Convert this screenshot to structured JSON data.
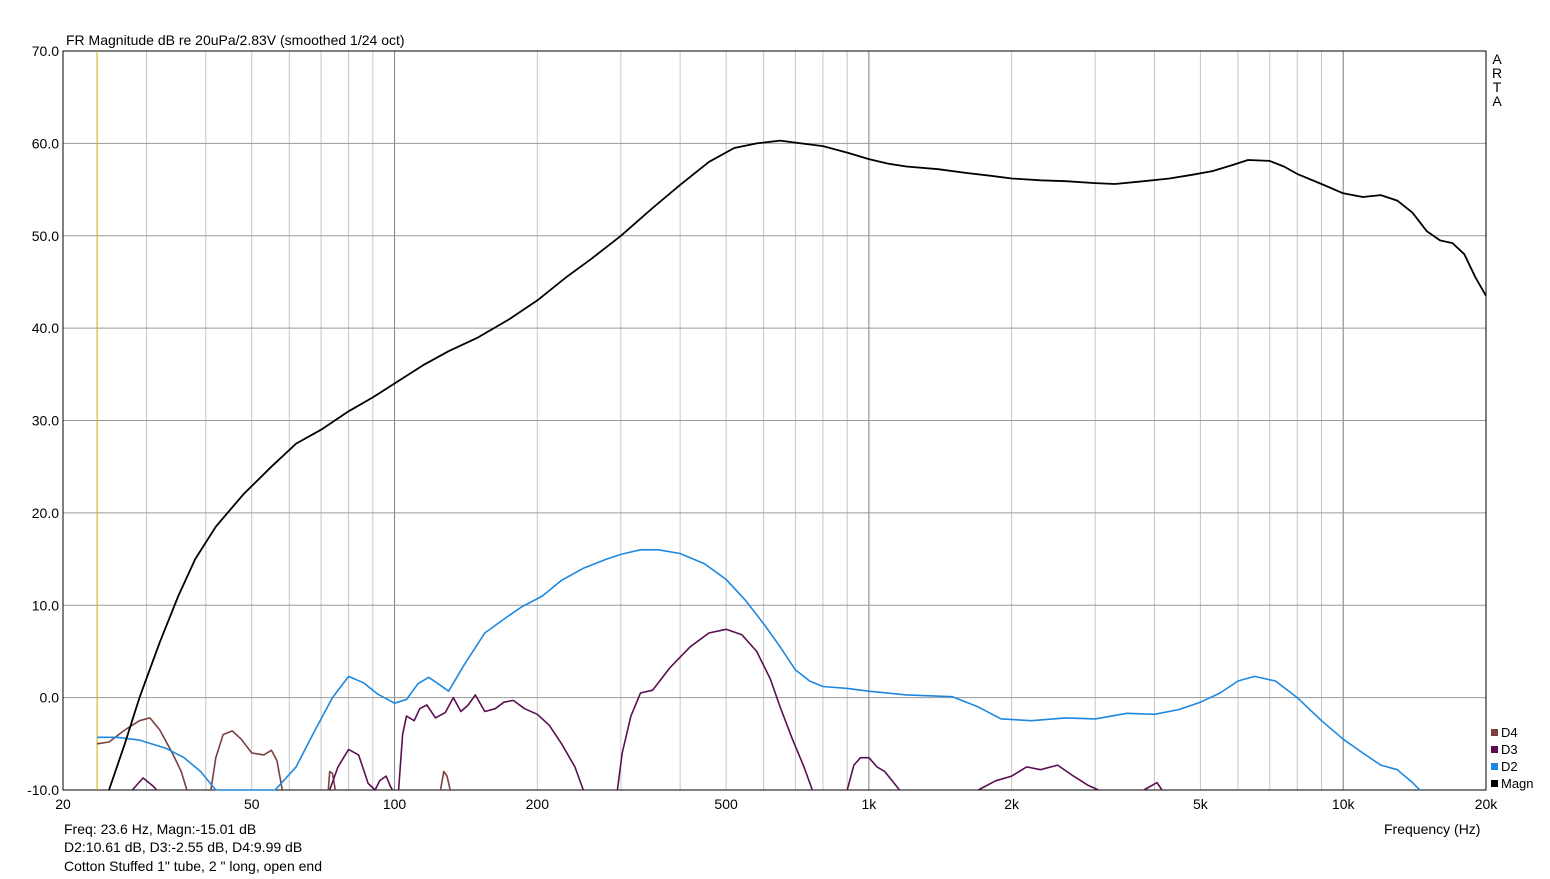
{
  "chart_data": {
    "type": "line",
    "title": "FR Magnitude dB re 20uPa/2.83V (smoothed 1/24 oct)",
    "xlabel": "Frequency (Hz)",
    "ylabel": "",
    "xscale": "log",
    "xlim": [
      20,
      20000
    ],
    "ylim": [
      -10,
      70
    ],
    "grid": true,
    "x_ticks": [
      {
        "value": 20,
        "label": "20"
      },
      {
        "value": 50,
        "label": "50"
      },
      {
        "value": 100,
        "label": "100"
      },
      {
        "value": 200,
        "label": "200"
      },
      {
        "value": 500,
        "label": "500"
      },
      {
        "value": 1000,
        "label": "1k"
      },
      {
        "value": 2000,
        "label": "2k"
      },
      {
        "value": 5000,
        "label": "5k"
      },
      {
        "value": 10000,
        "label": "10k"
      },
      {
        "value": 20000,
        "label": "20k"
      }
    ],
    "y_ticks": [
      "-10.0",
      "0.0",
      "10.0",
      "20.0",
      "30.0",
      "40.0",
      "50.0",
      "60.0",
      "70.0"
    ],
    "cursor_freq": 23.6,
    "cursor_color": "#c8b400",
    "watermark": [
      "A",
      "R",
      "T",
      "A"
    ],
    "legend_position": "right-bottom",
    "legend": [
      {
        "name": "D4",
        "color": "#7b3f3f"
      },
      {
        "name": "D3",
        "color": "#5a1050"
      },
      {
        "name": "D2",
        "color": "#1e88e0"
      },
      {
        "name": "Magn",
        "color": "#000000"
      }
    ],
    "series": [
      {
        "name": "Magn",
        "color": "#000000",
        "points": [
          [
            25,
            -10
          ],
          [
            27,
            -5
          ],
          [
            29,
            0
          ],
          [
            32,
            6
          ],
          [
            35,
            11
          ],
          [
            38,
            15
          ],
          [
            42,
            18.5
          ],
          [
            48,
            22
          ],
          [
            55,
            25
          ],
          [
            62,
            27.5
          ],
          [
            70,
            29
          ],
          [
            80,
            31
          ],
          [
            90,
            32.5
          ],
          [
            100,
            34
          ],
          [
            115,
            36
          ],
          [
            130,
            37.5
          ],
          [
            150,
            39
          ],
          [
            175,
            41
          ],
          [
            200,
            43
          ],
          [
            230,
            45.5
          ],
          [
            260,
            47.5
          ],
          [
            300,
            50
          ],
          [
            350,
            53
          ],
          [
            400,
            55.5
          ],
          [
            460,
            58
          ],
          [
            520,
            59.5
          ],
          [
            580,
            60
          ],
          [
            650,
            60.3
          ],
          [
            720,
            60
          ],
          [
            800,
            59.7
          ],
          [
            900,
            59
          ],
          [
            1000,
            58.3
          ],
          [
            1100,
            57.8
          ],
          [
            1200,
            57.5
          ],
          [
            1400,
            57.2
          ],
          [
            1600,
            56.8
          ],
          [
            1800,
            56.5
          ],
          [
            2000,
            56.2
          ],
          [
            2300,
            56
          ],
          [
            2600,
            55.9
          ],
          [
            3000,
            55.7
          ],
          [
            3300,
            55.6
          ],
          [
            3800,
            55.9
          ],
          [
            4300,
            56.2
          ],
          [
            4800,
            56.6
          ],
          [
            5300,
            57
          ],
          [
            5800,
            57.6
          ],
          [
            6300,
            58.2
          ],
          [
            7000,
            58.1
          ],
          [
            7500,
            57.5
          ],
          [
            8000,
            56.7
          ],
          [
            9000,
            55.6
          ],
          [
            10000,
            54.6
          ],
          [
            11000,
            54.2
          ],
          [
            12000,
            54.4
          ],
          [
            13000,
            53.8
          ],
          [
            14000,
            52.5
          ],
          [
            15000,
            50.5
          ],
          [
            16000,
            49.5
          ],
          [
            17000,
            49.2
          ],
          [
            18000,
            48
          ],
          [
            19000,
            45.5
          ],
          [
            20000,
            43.5
          ]
        ]
      },
      {
        "name": "D2",
        "color": "#1e88e0",
        "points": [
          [
            23.6,
            -4.3
          ],
          [
            26,
            -4.3
          ],
          [
            29,
            -4.6
          ],
          [
            33,
            -5.5
          ],
          [
            36,
            -6.5
          ],
          [
            39,
            -8
          ],
          [
            42,
            -10
          ],
          [
            56,
            -10
          ],
          [
            62,
            -7.5
          ],
          [
            68,
            -3.5
          ],
          [
            74,
            0
          ],
          [
            80,
            2.3
          ],
          [
            86,
            1.6
          ],
          [
            92,
            0.4
          ],
          [
            100,
            -0.6
          ],
          [
            106,
            -0.2
          ],
          [
            112,
            1.5
          ],
          [
            118,
            2.2
          ],
          [
            122,
            1.7
          ],
          [
            130,
            0.7
          ],
          [
            140,
            3.5
          ],
          [
            155,
            7
          ],
          [
            170,
            8.5
          ],
          [
            185,
            9.8
          ],
          [
            205,
            11
          ],
          [
            225,
            12.7
          ],
          [
            250,
            14
          ],
          [
            280,
            15
          ],
          [
            300,
            15.5
          ],
          [
            330,
            16
          ],
          [
            360,
            16
          ],
          [
            400,
            15.6
          ],
          [
            450,
            14.5
          ],
          [
            500,
            12.8
          ],
          [
            550,
            10.5
          ],
          [
            600,
            8
          ],
          [
            650,
            5.5
          ],
          [
            700,
            3
          ],
          [
            750,
            1.8
          ],
          [
            800,
            1.2
          ],
          [
            900,
            1
          ],
          [
            1000,
            0.7
          ],
          [
            1200,
            0.3
          ],
          [
            1500,
            0.1
          ],
          [
            1700,
            -1
          ],
          [
            1900,
            -2.3
          ],
          [
            2200,
            -2.5
          ],
          [
            2600,
            -2.2
          ],
          [
            3000,
            -2.3
          ],
          [
            3500,
            -1.7
          ],
          [
            4000,
            -1.8
          ],
          [
            4500,
            -1.3
          ],
          [
            5000,
            -0.5
          ],
          [
            5500,
            0.5
          ],
          [
            6000,
            1.8
          ],
          [
            6500,
            2.3
          ],
          [
            7200,
            1.8
          ],
          [
            8000,
            0
          ],
          [
            9000,
            -2.5
          ],
          [
            10000,
            -4.5
          ],
          [
            11000,
            -6
          ],
          [
            12000,
            -7.3
          ],
          [
            13000,
            -7.8
          ],
          [
            14000,
            -9.2
          ],
          [
            14500,
            -10
          ]
        ]
      },
      {
        "name": "D3",
        "color": "#5a1050",
        "segments": [
          [
            [
              28,
              -10
            ],
            [
              29.5,
              -8.7
            ],
            [
              31,
              -9.6
            ],
            [
              31.5,
              -10
            ]
          ],
          [
            [
              73,
              -10
            ],
            [
              76,
              -7.5
            ],
            [
              80,
              -5.6
            ],
            [
              84,
              -6.2
            ],
            [
              88,
              -9.3
            ],
            [
              91,
              -10
            ],
            [
              93,
              -9
            ],
            [
              96,
              -8.5
            ],
            [
              98,
              -9.6
            ],
            [
              99,
              -10
            ]
          ],
          [
            [
              102,
              -10
            ],
            [
              104,
              -4
            ],
            [
              106,
              -2
            ],
            [
              110,
              -2.5
            ],
            [
              113,
              -1.2
            ],
            [
              117,
              -0.8
            ],
            [
              122,
              -2.2
            ],
            [
              128,
              -1.6
            ],
            [
              133,
              0
            ],
            [
              138,
              -1.5
            ],
            [
              143,
              -0.8
            ],
            [
              148,
              0.3
            ],
            [
              155,
              -1.5
            ],
            [
              163,
              -1.2
            ],
            [
              170,
              -0.5
            ],
            [
              178,
              -0.3
            ],
            [
              188,
              -1.2
            ],
            [
              200,
              -1.8
            ],
            [
              212,
              -3
            ],
            [
              225,
              -5
            ],
            [
              240,
              -7.5
            ],
            [
              250,
              -10
            ]
          ],
          [
            [
              295,
              -10
            ],
            [
              302,
              -6
            ],
            [
              315,
              -2
            ],
            [
              330,
              0.5
            ],
            [
              350,
              0.8
            ],
            [
              380,
              3.2
            ],
            [
              420,
              5.5
            ],
            [
              460,
              7
            ],
            [
              500,
              7.4
            ],
            [
              540,
              6.8
            ],
            [
              580,
              5
            ],
            [
              620,
              2
            ],
            [
              650,
              -1
            ],
            [
              690,
              -4.5
            ],
            [
              730,
              -7.5
            ],
            [
              760,
              -10
            ]
          ],
          [
            [
              900,
              -10
            ],
            [
              930,
              -7.3
            ],
            [
              960,
              -6.5
            ],
            [
              1000,
              -6.5
            ],
            [
              1040,
              -7.5
            ],
            [
              1080,
              -8
            ],
            [
              1120,
              -9
            ],
            [
              1160,
              -10
            ]
          ],
          [
            [
              1700,
              -10
            ],
            [
              1850,
              -9
            ],
            [
              2000,
              -8.5
            ],
            [
              2150,
              -7.5
            ],
            [
              2300,
              -7.8
            ],
            [
              2500,
              -7.3
            ],
            [
              2700,
              -8.5
            ],
            [
              2900,
              -9.5
            ],
            [
              3050,
              -10
            ]
          ],
          [
            [
              3800,
              -10
            ],
            [
              4050,
              -9.2
            ],
            [
              4150,
              -10
            ]
          ]
        ]
      },
      {
        "name": "D4",
        "color": "#7b3f3f",
        "segments": [
          [
            [
              23.6,
              -5
            ],
            [
              25,
              -4.8
            ],
            [
              27,
              -3.5
            ],
            [
              29,
              -2.5
            ],
            [
              30.5,
              -2.2
            ],
            [
              32,
              -3.5
            ],
            [
              34,
              -6
            ],
            [
              35.5,
              -8
            ],
            [
              36.5,
              -10
            ]
          ],
          [
            [
              41,
              -10
            ],
            [
              42,
              -6.5
            ],
            [
              43.5,
              -4
            ],
            [
              45.5,
              -3.6
            ],
            [
              47.5,
              -4.5
            ],
            [
              50,
              -6
            ],
            [
              53,
              -6.2
            ],
            [
              55,
              -5.7
            ],
            [
              56.5,
              -6.8
            ],
            [
              58,
              -10
            ]
          ],
          [
            [
              72.5,
              -10
            ],
            [
              73,
              -8
            ],
            [
              74,
              -8.2
            ],
            [
              75,
              -10
            ]
          ],
          [
            [
              125,
              -10
            ],
            [
              127,
              -8
            ],
            [
              129,
              -8.5
            ],
            [
              131,
              -10
            ]
          ]
        ]
      }
    ]
  },
  "footer": {
    "readout_line1": "Freq: 23.6 Hz, Magn:-15.01 dB",
    "readout_line2": "D2:10.61 dB, D3:-2.55 dB, D4:9.99 dB",
    "caption": "Cotton Stuffed 1\" tube, 2 \" long, open end"
  }
}
